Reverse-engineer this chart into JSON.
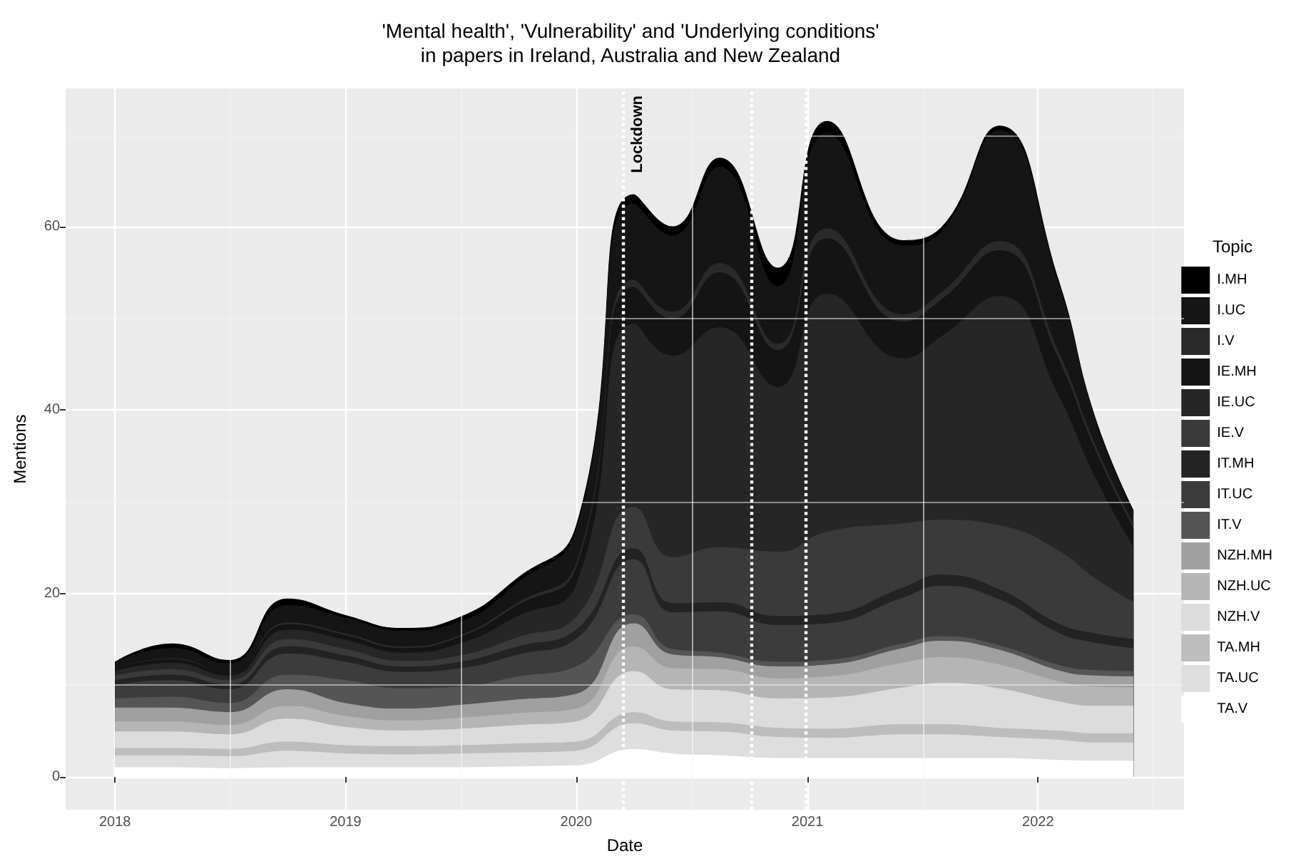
{
  "chart_data": {
    "type": "area",
    "stacked": true,
    "title": "'Mental health', 'Vulnerability' and 'Underlying conditions'\nin papers in Ireland, Australia and New Zealand",
    "xlabel": "Date",
    "ylabel": "Mentions",
    "legend_title": "Topic",
    "legend": "right",
    "grid": true,
    "x": [
      "2018-01-01",
      "2018-04-01",
      "2018-07-01",
      "2018-10-01",
      "2019-01-01",
      "2019-04-01",
      "2019-07-01",
      "2019-10-01",
      "2020-01-01",
      "2020-04-01",
      "2020-06-01",
      "2020-08-15",
      "2020-11-15",
      "2021-02-01",
      "2021-06-01",
      "2021-08-01",
      "2021-11-01",
      "2022-02-01",
      "2022-04-01",
      "2022-06-01"
    ],
    "xlim": [
      "2017-10-15",
      "2022-08-20"
    ],
    "xticks": [
      "2018",
      "2019",
      "2020",
      "2021",
      "2022"
    ],
    "ylim": [
      -3.6,
      75.1
    ],
    "yticks": [
      0,
      20,
      40,
      60
    ],
    "ref_lines": [
      {
        "axis": "x",
        "value": "2020-03-15",
        "label": "Lockdown",
        "color": "#ffffff",
        "line_style": "dotted"
      },
      {
        "axis": "x",
        "value": "2020-10-05",
        "label": null,
        "color": "#ffffff",
        "line_style": "dotted"
      },
      {
        "axis": "x",
        "value": "2020-12-30",
        "label": null,
        "color": "#ffffff",
        "line_style": "dotted"
      }
    ],
    "series": [
      {
        "name": "TA.V",
        "color": "#ffffff",
        "values": [
          1,
          1,
          0.9,
          1,
          1,
          1,
          1,
          1.1,
          1.2,
          3,
          2.5,
          2.3,
          2,
          2,
          2,
          2,
          2,
          1.8,
          1.7,
          1.7
        ]
      },
      {
        "name": "TA.UC",
        "color": "#dedede",
        "values": [
          1.3,
          1.3,
          1.3,
          1.8,
          1.5,
          1.4,
          1.5,
          1.5,
          1.6,
          2.8,
          2.5,
          2.6,
          2.3,
          2.2,
          2.6,
          2.6,
          2.3,
          2.2,
          2,
          2
        ]
      },
      {
        "name": "TA.MH",
        "color": "#bdbdbd",
        "values": [
          0.8,
          0.8,
          0.8,
          1,
          0.9,
          0.9,
          0.9,
          1,
          1,
          1.2,
          1,
          1,
          1,
          1,
          1.1,
          1.1,
          1,
          1,
          1,
          1
        ]
      },
      {
        "name": "NZH.V",
        "color": "#dcdcdc",
        "values": [
          1.8,
          1.8,
          1.6,
          2.5,
          2,
          1.7,
          1.8,
          2,
          2.2,
          4.5,
          3.5,
          3.5,
          3.2,
          3.4,
          4,
          4.5,
          4.3,
          3.2,
          3,
          3
        ]
      },
      {
        "name": "NZH.UC",
        "color": "#b5b5b5",
        "values": [
          1.1,
          1.1,
          1,
          1.4,
          1.2,
          1.1,
          1.2,
          1.3,
          1.4,
          2.7,
          2.3,
          2.3,
          2.2,
          2.3,
          2.7,
          2.8,
          2.6,
          2.2,
          2.1,
          2
        ]
      },
      {
        "name": "NZH.MH",
        "color": "#a0a0a0",
        "values": [
          1.5,
          1.5,
          1.4,
          1.8,
          1.4,
          1.3,
          1.4,
          1.5,
          1.6,
          2.5,
          1.5,
          1.3,
          1.3,
          1.3,
          1.6,
          1.8,
          1.6,
          1.2,
          1.2,
          1.2
        ]
      },
      {
        "name": "IT.V",
        "color": "#555555",
        "values": [
          1,
          1.2,
          1,
          1.6,
          2.5,
          2.2,
          2,
          2.5,
          3,
          1,
          0.6,
          0.5,
          0.5,
          0.5,
          0.5,
          0.5,
          0.5,
          0.6,
          0.6,
          0.6
        ]
      },
      {
        "name": "IT.UC",
        "color": "#3c3c3c",
        "values": [
          1.5,
          1.8,
          1.5,
          2.3,
          2,
          1.8,
          2,
          2.4,
          3,
          6,
          4,
          4.5,
          4,
          4,
          5,
          5.5,
          5,
          3.5,
          3,
          2.5
        ]
      },
      {
        "name": "IT.MH",
        "color": "#232323",
        "values": [
          0.5,
          0.6,
          0.5,
          0.8,
          0.7,
          0.6,
          0.7,
          0.9,
          1,
          1.2,
          1,
          1,
          1,
          1,
          1.1,
          1.2,
          1.1,
          1,
          1,
          1
        ]
      },
      {
        "name": "IE.V",
        "color": "#3a3a3a",
        "values": [
          0.5,
          0.6,
          0.5,
          0.8,
          0.7,
          0.6,
          0.7,
          1,
          1.4,
          4.5,
          5,
          6,
          7,
          9,
          7,
          6,
          7,
          8,
          6,
          4
        ]
      },
      {
        "name": "IE.UC",
        "color": "#262626",
        "values": [
          0.5,
          0.7,
          0.5,
          1,
          1,
          0.9,
          1.3,
          2.3,
          3.5,
          20,
          22,
          24,
          18,
          26,
          18,
          20,
          25,
          17,
          11,
          6
        ]
      },
      {
        "name": "IE.MH",
        "color": "#141414",
        "values": [
          0.3,
          0.4,
          0.3,
          0.6,
          0.5,
          0.5,
          0.7,
          1.2,
          1.8,
          4,
          4,
          6,
          4,
          6,
          4,
          4,
          5,
          4,
          3,
          2
        ]
      },
      {
        "name": "I.V",
        "color": "#2a2a2a",
        "values": [
          0,
          0.1,
          0,
          0.2,
          0.2,
          0.2,
          0.2,
          0.3,
          0.5,
          0.8,
          0.8,
          1,
          0.7,
          1.1,
          0.8,
          0.8,
          1,
          0.8,
          0.6,
          0.5
        ]
      },
      {
        "name": "I.UC",
        "color": "#151515",
        "values": [
          0.7,
          1.1,
          1,
          1.9,
          1.7,
          1.7,
          1.5,
          2.2,
          3.6,
          8.3,
          8.3,
          10.5,
          6.3,
          10.4,
          7.5,
          6.6,
          12.1,
          7.5,
          2.8,
          1.2
        ]
      },
      {
        "name": "I.MH",
        "color": "#000000",
        "values": [
          0,
          0.5,
          0.4,
          0.7,
          0.3,
          0.3,
          0.5,
          0.5,
          0.5,
          1,
          1,
          1,
          2,
          1.3,
          0.6,
          0.5,
          0.5,
          0.4,
          0.2,
          0.3
        ]
      }
    ]
  }
}
